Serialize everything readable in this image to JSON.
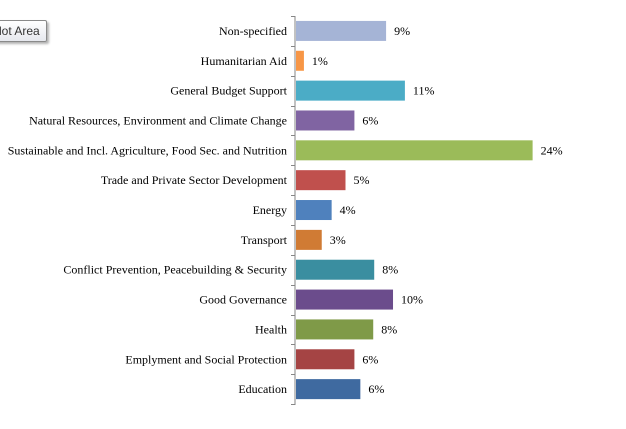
{
  "tooltip": "lot Area",
  "chart_data": {
    "type": "bar",
    "orientation": "horizontal",
    "title": "",
    "xlabel": "",
    "ylabel": "",
    "unit": "%",
    "grid": false,
    "xlim": [
      0,
      24
    ],
    "categories": [
      "Non-specified",
      "Humanitarian Aid",
      "General Budget Support",
      "Natural Resources, Environment and Climate Change",
      "Sustainable and Incl. Agriculture, Food Sec. and Nutrition",
      "Trade and Private Sector Development",
      "Energy",
      "Transport",
      "Conflict Prevention, Peacebuilding & Security",
      "Good Governance",
      "Health",
      "Emplyment and Social Protection",
      "Education"
    ],
    "values": [
      9.1,
      0.8,
      11.0,
      5.9,
      23.9,
      5.0,
      3.6,
      2.6,
      7.9,
      9.8,
      7.8,
      5.9,
      6.5
    ],
    "data_labels": [
      "9%",
      "1%",
      "11%",
      "6%",
      "24%",
      "5%",
      "4%",
      "3%",
      "8%",
      "10%",
      "8%",
      "6%",
      "6%"
    ],
    "colors": [
      "#a5b4d6",
      "#f79646",
      "#4bacc6",
      "#8064a2",
      "#9bbb59",
      "#c0504d",
      "#4f81bd",
      "#d07b34",
      "#3a8ea0",
      "#6b4c8c",
      "#7f9a48",
      "#a54444",
      "#3f6aa0"
    ]
  }
}
